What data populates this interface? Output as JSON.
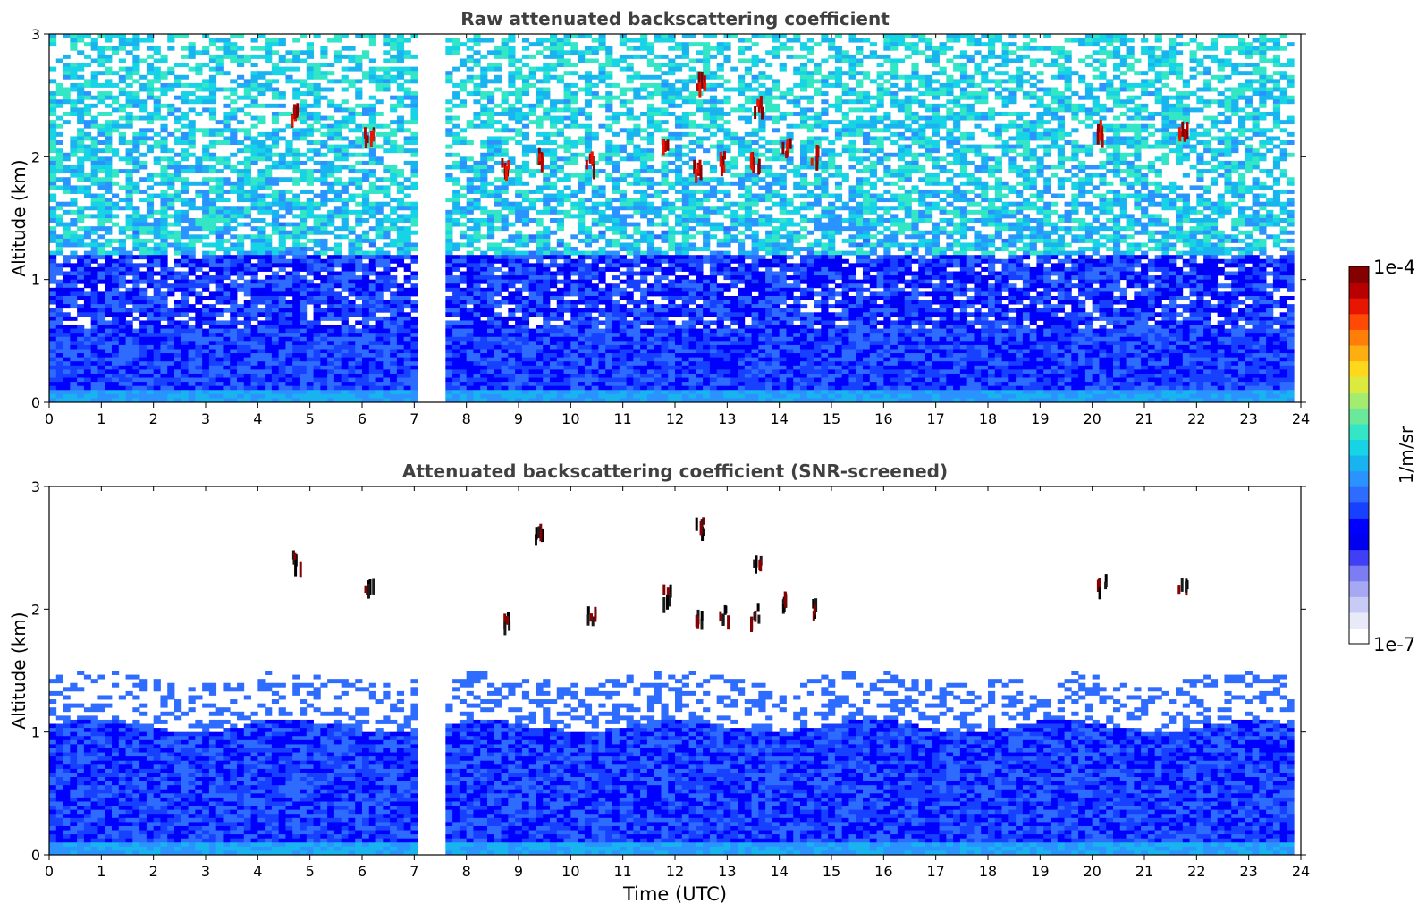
{
  "chart_data": [
    {
      "type": "heatmap",
      "title": "Raw attenuated backscattering coefficient",
      "xlabel": "",
      "ylabel": "Altitude (km)",
      "xlim": [
        0,
        24
      ],
      "ylim": [
        0,
        3
      ],
      "xticks": [
        "0",
        "1",
        "2",
        "3",
        "4",
        "5",
        "6",
        "7",
        "8",
        "9",
        "10",
        "11",
        "12",
        "13",
        "14",
        "15",
        "16",
        "17",
        "18",
        "19",
        "20",
        "21",
        "22",
        "23",
        "24"
      ],
      "yticks": [
        "0",
        "1",
        "2",
        "3"
      ],
      "data_gap_hours": [
        7.05,
        7.6
      ],
      "aerosol_layer_top_km": 0.6,
      "cloud_patches": [
        {
          "time": 4.75,
          "altitude": 2.35
        },
        {
          "time": 6.15,
          "altitude": 2.15
        },
        {
          "time": 8.75,
          "altitude": 1.9
        },
        {
          "time": 9.45,
          "altitude": 2.0
        },
        {
          "time": 10.4,
          "altitude": 1.95
        },
        {
          "time": 11.85,
          "altitude": 2.1
        },
        {
          "time": 12.45,
          "altitude": 1.9
        },
        {
          "time": 12.5,
          "altitude": 2.6
        },
        {
          "time": 12.95,
          "altitude": 1.95
        },
        {
          "time": 13.55,
          "altitude": 1.95
        },
        {
          "time": 13.6,
          "altitude": 2.4
        },
        {
          "time": 14.15,
          "altitude": 2.05
        },
        {
          "time": 14.7,
          "altitude": 2.0
        },
        {
          "time": 20.2,
          "altitude": 2.2
        },
        {
          "time": 21.75,
          "altitude": 2.2
        }
      ]
    },
    {
      "type": "heatmap",
      "title": "Attenuated backscattering coefficient (SNR-screened)",
      "xlabel": "Time (UTC)",
      "ylabel": "Altitude (km)",
      "xlim": [
        0,
        24
      ],
      "ylim": [
        0,
        3
      ],
      "xticks": [
        "0",
        "1",
        "2",
        "3",
        "4",
        "5",
        "6",
        "7",
        "8",
        "9",
        "10",
        "11",
        "12",
        "13",
        "14",
        "15",
        "16",
        "17",
        "18",
        "19",
        "20",
        "21",
        "22",
        "23",
        "24"
      ],
      "yticks": [
        "0",
        "1",
        "2",
        "3"
      ],
      "data_gap_hours": [
        7.05,
        7.6
      ],
      "boundary_layer_top_km": 1.05,
      "cloud_patches": [
        {
          "time": 4.75,
          "altitude": 2.4
        },
        {
          "time": 6.15,
          "altitude": 2.15
        },
        {
          "time": 8.75,
          "altitude": 1.9
        },
        {
          "time": 9.4,
          "altitude": 2.6
        },
        {
          "time": 10.4,
          "altitude": 1.95
        },
        {
          "time": 11.85,
          "altitude": 2.1
        },
        {
          "time": 12.45,
          "altitude": 1.9
        },
        {
          "time": 12.5,
          "altitude": 2.65
        },
        {
          "time": 12.95,
          "altitude": 1.95
        },
        {
          "time": 13.55,
          "altitude": 1.95
        },
        {
          "time": 13.6,
          "altitude": 2.4
        },
        {
          "time": 14.15,
          "altitude": 2.05
        },
        {
          "time": 14.7,
          "altitude": 2.0
        },
        {
          "time": 20.2,
          "altitude": 2.2
        },
        {
          "time": 21.75,
          "altitude": 2.2
        }
      ]
    }
  ],
  "colorbar": {
    "label": "1/m/sr",
    "max_label": "1e-4",
    "min_label": "1e-7",
    "colors": [
      "#ffffff",
      "#e8eaf8",
      "#c8cbf5",
      "#a6a8f4",
      "#7c7cf5",
      "#3f3ff5",
      "#0000ee",
      "#0000ff",
      "#1840ff",
      "#2e6cff",
      "#2a93ff",
      "#19b4f0",
      "#17d3e6",
      "#33e6c5",
      "#6ce89a",
      "#a4ec70",
      "#dcea3f",
      "#ffd81e",
      "#ffae12",
      "#ff7e0a",
      "#ff4a05",
      "#e81500",
      "#b80000",
      "#850000"
    ]
  }
}
